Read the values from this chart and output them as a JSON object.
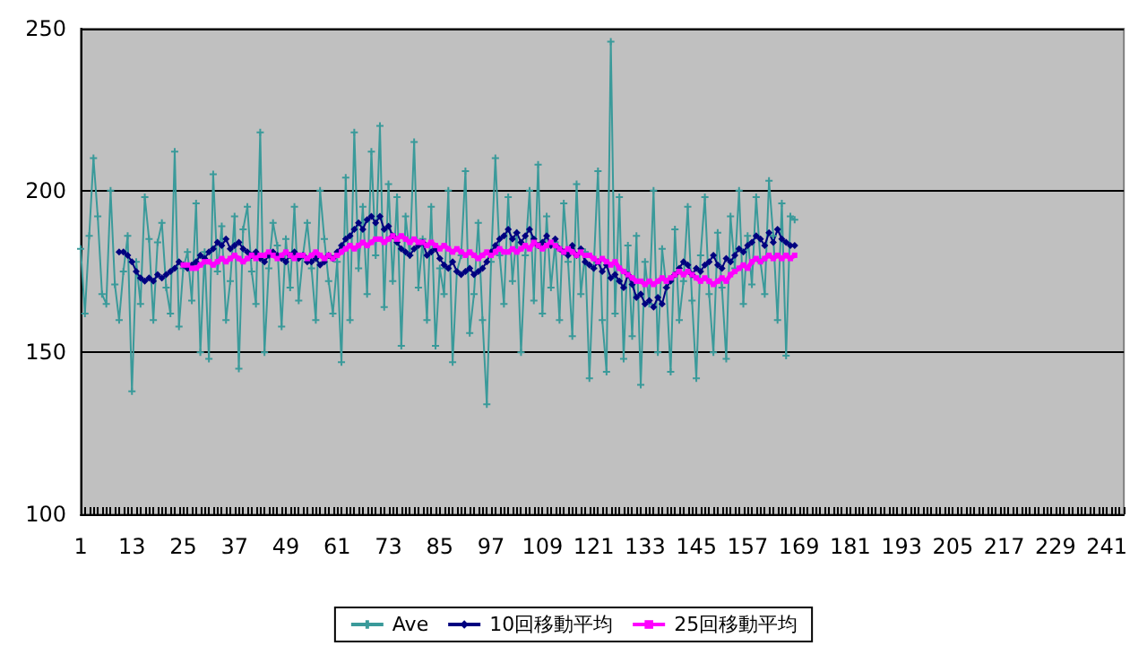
{
  "chart_data": {
    "type": "line",
    "categories": [
      "1",
      null,
      null,
      null,
      null,
      null,
      null,
      null,
      null,
      null,
      null,
      null,
      "13",
      null,
      null,
      null,
      null,
      null,
      null,
      null,
      null,
      null,
      null,
      null,
      "25",
      null,
      null,
      null,
      null,
      null,
      null,
      null,
      null,
      null,
      null,
      null,
      "37",
      null,
      null,
      null,
      null,
      null,
      null,
      null,
      null,
      null,
      null,
      null,
      "49",
      null,
      null,
      null,
      null,
      null,
      null,
      null,
      null,
      null,
      null,
      null,
      "61",
      null,
      null,
      null,
      null,
      null,
      null,
      null,
      null,
      null,
      null,
      null,
      "73",
      null,
      null,
      null,
      null,
      null,
      null,
      null,
      null,
      null,
      null,
      null,
      "85",
      null,
      null,
      null,
      null,
      null,
      null,
      null,
      null,
      null,
      null,
      null,
      "97",
      null,
      null,
      null,
      null,
      null,
      null,
      null,
      null,
      null,
      null,
      null,
      "109",
      null,
      null,
      null,
      null,
      null,
      null,
      null,
      null,
      null,
      null,
      null,
      "121",
      null,
      null,
      null,
      null,
      null,
      null,
      null,
      null,
      null,
      null,
      null,
      "133",
      null,
      null,
      null,
      null,
      null,
      null,
      null,
      null,
      null,
      null,
      null,
      "145",
      null,
      null,
      null,
      null,
      null,
      null,
      null,
      null,
      null,
      null,
      null,
      "157",
      null,
      null,
      null,
      null,
      null,
      null,
      null,
      null,
      null,
      null,
      null,
      "169",
      null,
      null,
      null,
      null,
      null,
      null,
      null,
      null,
      null,
      null,
      null,
      "181",
      null,
      null,
      null,
      null,
      null,
      null,
      null,
      null,
      null,
      null,
      null,
      "193",
      null,
      null,
      null,
      null,
      null,
      null,
      null,
      null,
      null,
      null,
      null,
      "205",
      null,
      null,
      null,
      null,
      null,
      null,
      null,
      null,
      null,
      null,
      null,
      "217",
      null,
      null,
      null,
      null,
      null,
      null,
      null,
      null,
      null,
      null,
      null,
      "229",
      null,
      null,
      null,
      null,
      null,
      null,
      null,
      null,
      null,
      null,
      null,
      "241",
      null,
      null,
      null,
      null
    ],
    "series": [
      {
        "name": "Ave",
        "color": "#3a9a9a",
        "marker": "cross",
        "values": [
          182,
          162,
          186,
          210,
          192,
          168,
          165,
          200,
          171,
          160,
          175,
          186,
          138,
          178,
          165,
          198,
          185,
          160,
          184,
          190,
          170,
          162,
          212,
          158,
          176,
          181,
          166,
          196,
          150,
          181,
          148,
          205,
          175,
          189,
          160,
          172,
          192,
          145,
          188,
          195,
          175,
          165,
          218,
          150,
          176,
          190,
          183,
          158,
          185,
          170,
          195,
          166,
          180,
          190,
          176,
          160,
          200,
          185,
          172,
          162,
          178,
          147,
          204,
          160,
          218,
          176,
          195,
          168,
          212,
          180,
          220,
          164,
          202,
          172,
          198,
          152,
          192,
          180,
          215,
          170,
          185,
          160,
          195,
          152,
          176,
          168,
          200,
          147,
          175,
          180,
          206,
          156,
          168,
          190,
          160,
          134,
          178,
          210,
          180,
          165,
          198,
          172,
          187,
          150,
          180,
          200,
          166,
          208,
          162,
          192,
          170,
          184,
          160,
          196,
          178,
          155,
          202,
          168,
          181,
          142,
          176,
          206,
          160,
          144,
          246,
          162,
          198,
          148,
          183,
          155,
          186,
          140,
          178,
          165,
          200,
          150,
          182,
          170,
          144,
          188,
          160,
          172,
          195,
          166,
          142,
          180,
          198,
          168,
          150,
          187,
          170,
          148,
          192,
          176,
          200,
          165,
          186,
          171,
          198,
          178,
          168,
          203,
          186,
          160,
          196,
          149,
          192,
          191,
          null,
          null,
          null,
          null,
          null,
          null,
          null,
          null,
          null,
          null,
          null,
          null,
          null,
          null,
          null,
          null,
          null,
          null,
          null,
          null,
          null,
          null,
          null,
          null,
          null,
          null,
          null,
          null,
          null,
          null,
          null,
          null,
          null,
          null,
          null,
          null,
          null,
          null,
          null,
          null,
          null,
          null,
          null,
          null,
          null,
          null,
          null,
          null,
          null,
          null,
          null,
          null,
          null,
          null,
          null,
          null,
          null,
          null,
          null,
          null,
          null,
          null,
          null,
          null,
          null,
          null,
          null,
          null,
          null,
          null,
          null,
          null,
          null,
          null,
          null,
          null,
          null
        ]
      },
      {
        "name": "10回移動平均",
        "color": "#000080",
        "marker": "diamond",
        "values": [
          null,
          null,
          null,
          null,
          null,
          null,
          null,
          null,
          null,
          181,
          181,
          180,
          178,
          175,
          173,
          172,
          173,
          172,
          174,
          173,
          174,
          175,
          176,
          178,
          177,
          176,
          177,
          178,
          180,
          179,
          181,
          182,
          184,
          183,
          185,
          182,
          183,
          184,
          182,
          181,
          180,
          181,
          179,
          178,
          180,
          181,
          180,
          179,
          178,
          180,
          181,
          179,
          180,
          178,
          178,
          179,
          177,
          178,
          180,
          179,
          181,
          183,
          185,
          186,
          188,
          190,
          188,
          191,
          192,
          190,
          192,
          188,
          189,
          186,
          184,
          182,
          181,
          180,
          182,
          183,
          184,
          180,
          181,
          182,
          179,
          177,
          176,
          178,
          175,
          174,
          175,
          176,
          174,
          175,
          176,
          178,
          181,
          183,
          185,
          186,
          188,
          185,
          187,
          184,
          186,
          188,
          185,
          183,
          184,
          186,
          183,
          185,
          182,
          181,
          180,
          183,
          180,
          182,
          178,
          177,
          176,
          178,
          175,
          177,
          173,
          174,
          172,
          170,
          174,
          171,
          167,
          168,
          165,
          166,
          164,
          167,
          165,
          170,
          172,
          174,
          176,
          178,
          177,
          174,
          176,
          175,
          177,
          178,
          180,
          177,
          176,
          179,
          178,
          180,
          182,
          181,
          183,
          184,
          186,
          185,
          183,
          187,
          184,
          188,
          185,
          184,
          183,
          183,
          null,
          null,
          null,
          null,
          null,
          null,
          null,
          null,
          null,
          null,
          null,
          null,
          null,
          null,
          null,
          null,
          null,
          null,
          null,
          null,
          null,
          null,
          null,
          null,
          null,
          null,
          null,
          null,
          null,
          null,
          null,
          null,
          null,
          null,
          null,
          null,
          null,
          null,
          null,
          null,
          null,
          null,
          null,
          null,
          null,
          null,
          null,
          null,
          null,
          null,
          null,
          null,
          null,
          null,
          null,
          null,
          null,
          null,
          null,
          null,
          null,
          null,
          null,
          null,
          null,
          null,
          null,
          null,
          null,
          null,
          null,
          null,
          null,
          null,
          null,
          null,
          null
        ]
      },
      {
        "name": "25回移動平均",
        "color": "#ff00ff",
        "marker": "square",
        "values": [
          null,
          null,
          null,
          null,
          null,
          null,
          null,
          null,
          null,
          null,
          null,
          null,
          null,
          null,
          null,
          null,
          null,
          null,
          null,
          null,
          null,
          null,
          null,
          null,
          177,
          177,
          176,
          176,
          177,
          178,
          178,
          177,
          178,
          179,
          178,
          179,
          180,
          179,
          178,
          179,
          180,
          179,
          180,
          180,
          181,
          180,
          179,
          180,
          181,
          180,
          179,
          180,
          180,
          179,
          180,
          181,
          180,
          179,
          180,
          179,
          180,
          181,
          182,
          183,
          182,
          183,
          184,
          183,
          184,
          185,
          185,
          184,
          185,
          186,
          185,
          186,
          185,
          184,
          185,
          184,
          184,
          183,
          184,
          183,
          182,
          183,
          182,
          181,
          182,
          181,
          180,
          181,
          180,
          179,
          180,
          181,
          180,
          181,
          182,
          181,
          181,
          182,
          181,
          182,
          183,
          182,
          184,
          183,
          182,
          183,
          184,
          183,
          182,
          181,
          182,
          181,
          180,
          181,
          180,
          180,
          179,
          178,
          179,
          178,
          177,
          178,
          176,
          175,
          174,
          173,
          172,
          172,
          171,
          172,
          171,
          172,
          173,
          172,
          173,
          174,
          175,
          174,
          175,
          174,
          173,
          172,
          173,
          172,
          171,
          172,
          173,
          172,
          174,
          175,
          176,
          177,
          176,
          178,
          179,
          178,
          179,
          180,
          179,
          180,
          179,
          180,
          179,
          180,
          null,
          null,
          null,
          null,
          null,
          null,
          null,
          null,
          null,
          null,
          null,
          null,
          null,
          null,
          null,
          null,
          null,
          null,
          null,
          null,
          null,
          null,
          null,
          null,
          null,
          null,
          null,
          null,
          null,
          null,
          null,
          null,
          null,
          null,
          null,
          null,
          null,
          null,
          null,
          null,
          null,
          null,
          null,
          null,
          null,
          null,
          null,
          null,
          null,
          null,
          null,
          null,
          null,
          null,
          null,
          null,
          null,
          null,
          null,
          null,
          null,
          null,
          null,
          null,
          null,
          null,
          null,
          null,
          null,
          null,
          null,
          null,
          null,
          null,
          null,
          null,
          null
        ]
      }
    ],
    "ylim": [
      100,
      250
    ],
    "yticks": [
      100,
      150,
      200,
      250
    ],
    "grid": "y",
    "legend": "bottom"
  }
}
